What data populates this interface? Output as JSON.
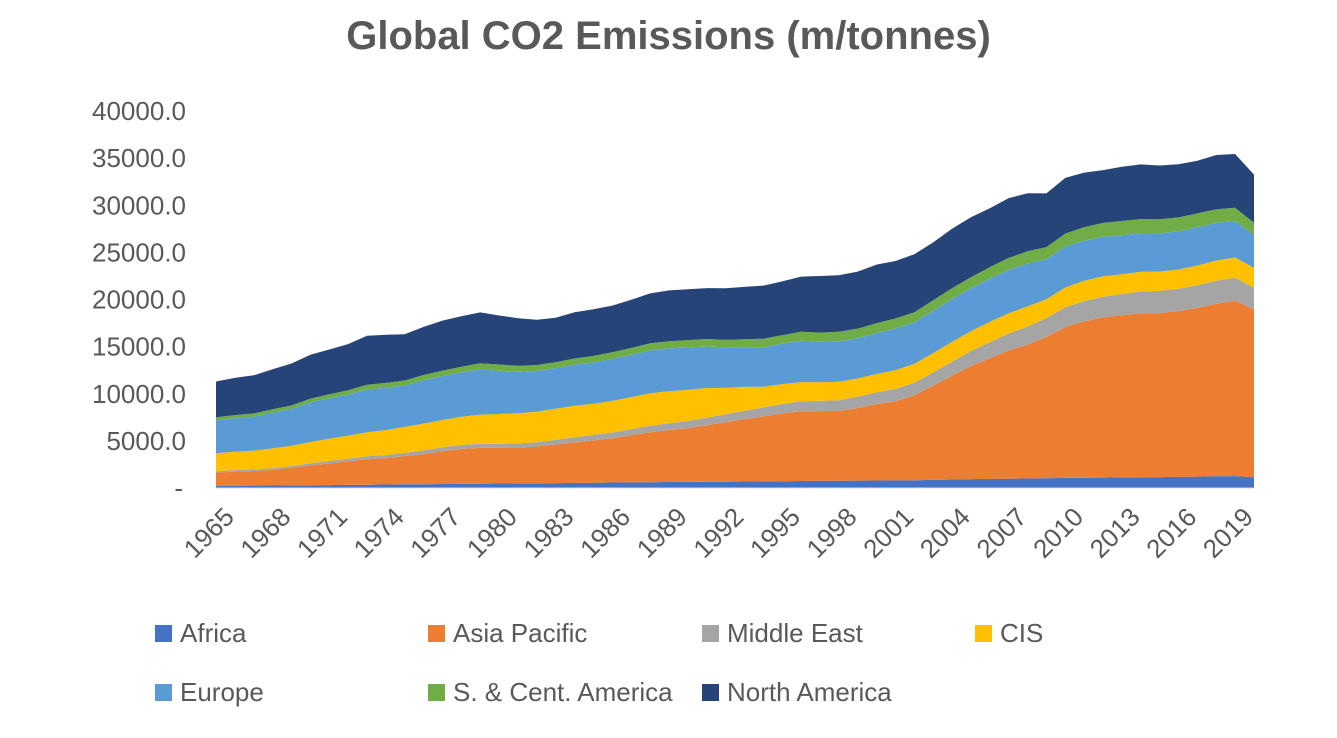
{
  "chart_data": {
    "type": "area",
    "stacked": true,
    "title": "Global CO2 Emissions (m/tonnes)",
    "ylim": [
      0,
      40000
    ],
    "y_ticks": [
      "-",
      "5000.0",
      "10000.0",
      "15000.0",
      "20000.0",
      "25000.0",
      "30000.0",
      "35000.0",
      "40000.0"
    ],
    "x_tick_labels": [
      "1965",
      "1968",
      "1971",
      "1974",
      "1977",
      "1980",
      "1983",
      "1986",
      "1989",
      "1992",
      "1995",
      "1998",
      "2001",
      "2004",
      "2007",
      "2010",
      "2013",
      "2016",
      "2019"
    ],
    "legend_position": "bottom",
    "x": [
      1965,
      1966,
      1967,
      1968,
      1969,
      1970,
      1971,
      1972,
      1973,
      1974,
      1975,
      1976,
      1977,
      1978,
      1979,
      1980,
      1981,
      1982,
      1983,
      1984,
      1985,
      1986,
      1987,
      1988,
      1989,
      1990,
      1991,
      1992,
      1993,
      1994,
      1995,
      1996,
      1997,
      1998,
      1999,
      2000,
      2001,
      2002,
      2003,
      2004,
      2005,
      2006,
      2007,
      2008,
      2009,
      2010,
      2011,
      2012,
      2013,
      2014,
      2015,
      2016,
      2017,
      2018,
      2019,
      2020
    ],
    "series": [
      {
        "name": "Africa",
        "color": "#4472C4",
        "values": [
          230,
          240,
          250,
          260,
          280,
          300,
          310,
          330,
          350,
          370,
          390,
          400,
          420,
          440,
          460,
          480,
          490,
          500,
          520,
          540,
          560,
          580,
          600,
          620,
          640,
          650,
          660,
          670,
          690,
          700,
          720,
          740,
          760,
          770,
          780,
          800,
          810,
          820,
          860,
          900,
          940,
          970,
          990,
          1020,
          1030,
          1070,
          1080,
          1100,
          1130,
          1150,
          1160,
          1180,
          1210,
          1240,
          1260,
          1150
        ]
      },
      {
        "name": "Asia Pacific",
        "color": "#ED7D31",
        "values": [
          1400,
          1500,
          1550,
          1650,
          1850,
          2100,
          2300,
          2500,
          2700,
          2800,
          3000,
          3200,
          3500,
          3700,
          3800,
          3800,
          3800,
          3900,
          4100,
          4300,
          4500,
          4700,
          5000,
          5300,
          5500,
          5700,
          6000,
          6300,
          6600,
          6900,
          7200,
          7400,
          7400,
          7400,
          7700,
          8100,
          8400,
          9000,
          10000,
          11000,
          12000,
          12800,
          13600,
          14200,
          15000,
          16000,
          16600,
          17000,
          17200,
          17400,
          17400,
          17600,
          17900,
          18300,
          18600,
          17800
        ]
      },
      {
        "name": "Middle East",
        "color": "#A5A5A5",
        "values": [
          150,
          160,
          170,
          190,
          200,
          230,
          260,
          280,
          310,
          320,
          340,
          380,
          400,
          420,
          430,
          420,
          440,
          460,
          500,
          540,
          580,
          610,
          640,
          680,
          720,
          760,
          800,
          850,
          900,
          950,
          1000,
          1050,
          1100,
          1150,
          1200,
          1250,
          1300,
          1350,
          1400,
          1500,
          1600,
          1700,
          1800,
          1900,
          2000,
          2100,
          2150,
          2200,
          2250,
          2300,
          2350,
          2350,
          2400,
          2450,
          2450,
          2300
        ]
      },
      {
        "name": "CIS",
        "color": "#FFC000",
        "values": [
          1900,
          1950,
          2000,
          2100,
          2150,
          2250,
          2350,
          2450,
          2550,
          2650,
          2750,
          2850,
          2900,
          3000,
          3100,
          3150,
          3200,
          3250,
          3300,
          3350,
          3300,
          3350,
          3400,
          3450,
          3400,
          3300,
          3150,
          2800,
          2550,
          2200,
          2100,
          2050,
          1950,
          1950,
          1950,
          1950,
          2000,
          2000,
          2050,
          2100,
          2100,
          2150,
          2150,
          2150,
          2000,
          2100,
          2150,
          2150,
          2100,
          2100,
          2050,
          2050,
          2100,
          2150,
          2150,
          2100
        ]
      },
      {
        "name": "Europe",
        "color": "#5B9BD5",
        "values": [
          3500,
          3550,
          3600,
          3800,
          3900,
          4200,
          4300,
          4350,
          4550,
          4500,
          4400,
          4600,
          4650,
          4700,
          4800,
          4600,
          4400,
          4300,
          4300,
          4350,
          4400,
          4450,
          4500,
          4550,
          4550,
          4500,
          4400,
          4300,
          4200,
          4200,
          4300,
          4400,
          4300,
          4300,
          4250,
          4350,
          4400,
          4400,
          4500,
          4550,
          4550,
          4600,
          4600,
          4550,
          4250,
          4350,
          4250,
          4200,
          4150,
          4050,
          4050,
          4050,
          4050,
          4000,
          3850,
          3500
        ]
      },
      {
        "name": "S. & Cent. America",
        "color": "#70AD47",
        "values": [
          320,
          330,
          340,
          360,
          380,
          410,
          430,
          460,
          490,
          510,
          530,
          560,
          590,
          610,
          640,
          650,
          640,
          640,
          640,
          660,
          680,
          710,
          730,
          750,
          760,
          780,
          800,
          820,
          850,
          880,
          900,
          940,
          980,
          1010,
          1030,
          1050,
          1070,
          1080,
          1100,
          1150,
          1180,
          1220,
          1270,
          1300,
          1280,
          1380,
          1430,
          1480,
          1510,
          1530,
          1510,
          1480,
          1470,
          1440,
          1430,
          1300
        ]
      },
      {
        "name": "North America",
        "color": "#264478",
        "values": [
          3800,
          3950,
          4050,
          4250,
          4450,
          4650,
          4750,
          4900,
          5200,
          5100,
          4900,
          5100,
          5300,
          5350,
          5400,
          5200,
          5050,
          4800,
          4700,
          4900,
          4950,
          4950,
          5100,
          5300,
          5400,
          5400,
          5400,
          5450,
          5550,
          5650,
          5700,
          5850,
          6000,
          6000,
          6050,
          6200,
          6100,
          6150,
          6150,
          6300,
          6350,
          6250,
          6350,
          6150,
          5700,
          5900,
          5800,
          5600,
          5750,
          5800,
          5700,
          5650,
          5600,
          5750,
          5700,
          5100
        ]
      }
    ]
  }
}
